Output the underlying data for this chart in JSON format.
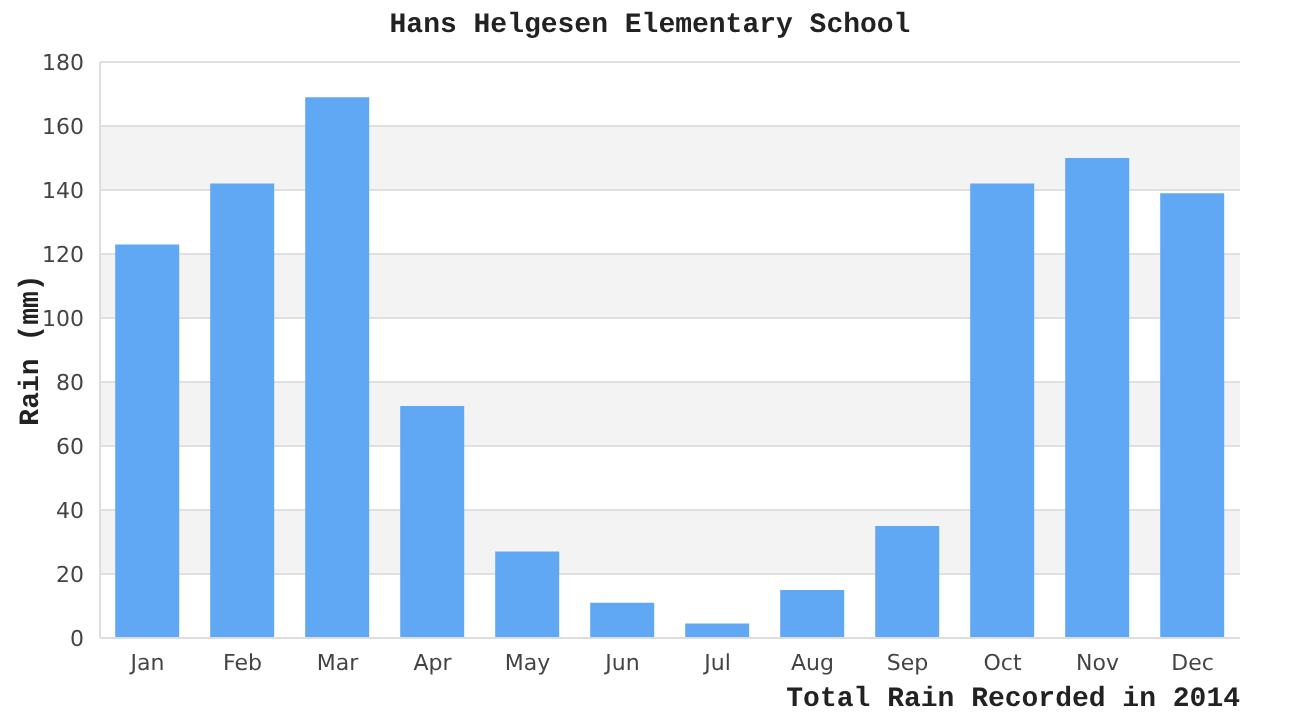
{
  "chart_data": {
    "type": "bar",
    "title": "Hans Helgesen Elementary School",
    "xlabel": "Total Rain Recorded in 2014",
    "ylabel": "Rain (mm)",
    "categories": [
      "Jan",
      "Feb",
      "Mar",
      "Apr",
      "May",
      "Jun",
      "Jul",
      "Aug",
      "Sep",
      "Oct",
      "Nov",
      "Dec"
    ],
    "values": [
      123,
      142,
      169,
      72.5,
      27,
      11,
      4.5,
      15,
      35,
      142,
      150,
      139
    ],
    "color": "#60a8f4",
    "ylim": [
      0,
      180
    ],
    "yticks": [
      0,
      20,
      40,
      60,
      80,
      100,
      120,
      140,
      160,
      180
    ],
    "grid": "y"
  }
}
